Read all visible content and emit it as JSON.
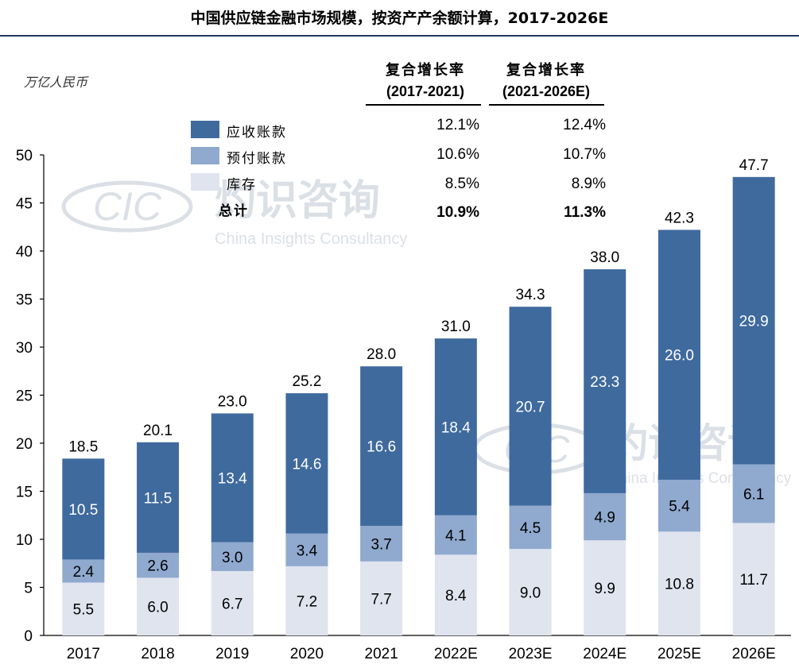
{
  "title": "中国供应链金融市场规模，按资产产余额计算，2017-2026E",
  "unit_label": "万亿人民币",
  "cagr_headers": [
    {
      "line1": "复合增长率",
      "line2": "(2017-2021)"
    },
    {
      "line1": "复合增长率",
      "line2": "(2021-2026E)"
    }
  ],
  "legend": [
    {
      "label": "应收账款",
      "color": "#3f6a9e"
    },
    {
      "label": "预付账款",
      "color": "#8fa9cf"
    },
    {
      "label": "库存",
      "color": "#dfe4ef"
    },
    {
      "label": "总计",
      "color": ""
    }
  ],
  "cagr_rows": [
    {
      "v1": "12.1%",
      "v2": "12.4%"
    },
    {
      "v1": "10.6%",
      "v2": "10.7%"
    },
    {
      "v1": "8.5%",
      "v2": "8.9%"
    },
    {
      "v1": "10.9%",
      "v2": "11.3%"
    }
  ],
  "watermark": {
    "logo": "CIC",
    "name_cn": "灼识咨询",
    "name_en": "China Insights Consultancy"
  },
  "chart_data": {
    "type": "bar",
    "stacked": true,
    "categories": [
      "2017",
      "2018",
      "2019",
      "2020",
      "2021",
      "2022E",
      "2023E",
      "2024E",
      "2025E",
      "2026E"
    ],
    "series": [
      {
        "name": "库存",
        "values": [
          5.5,
          6.0,
          6.7,
          7.2,
          7.7,
          8.4,
          9.0,
          9.9,
          10.8,
          11.7
        ],
        "color": "#dfe4ef"
      },
      {
        "name": "预付账款",
        "values": [
          2.4,
          2.6,
          3.0,
          3.4,
          3.7,
          4.1,
          4.5,
          4.9,
          5.4,
          6.1
        ],
        "color": "#8fa9cf"
      },
      {
        "name": "应收账款",
        "values": [
          10.5,
          11.5,
          13.4,
          14.6,
          16.6,
          18.4,
          20.7,
          23.3,
          26.0,
          29.9
        ],
        "color": "#3f6a9e"
      }
    ],
    "totals": [
      "18.5",
      "20.1",
      "23.0",
      "25.2",
      "28.0",
      "31.0",
      "34.3",
      "38.0",
      "42.3",
      "47.7"
    ],
    "ylim": [
      0,
      50
    ],
    "yticks": [
      0,
      5,
      10,
      15,
      20,
      25,
      30,
      35,
      40,
      45,
      50
    ],
    "grid": false
  }
}
